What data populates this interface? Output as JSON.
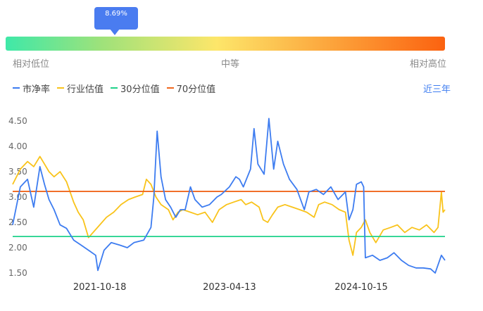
{
  "header": {
    "percentile_label": "8.69%",
    "percentile_value": 8.69,
    "scale_low": "相对低位",
    "scale_mid": "中等",
    "scale_high": "相对高位",
    "period": "近三年"
  },
  "colors": {
    "pb": "#3d7cf0",
    "industry": "#f9c31a",
    "p30": "#1fd28a",
    "p70": "#f0661d"
  },
  "chart_data": {
    "type": "line",
    "xlabel": "",
    "ylabel": "",
    "ylim": [
      1.5,
      4.5
    ],
    "yticks": [
      "4.50",
      "4.00",
      "3.50",
      "3.00",
      "2.50",
      "2.00",
      "1.50"
    ],
    "xticks": [
      "2021-10-18",
      "2023-04-13",
      "2024-10-15"
    ],
    "x_range": [
      "2020-10-19",
      "2025-09-30"
    ],
    "legend_position": "top-left",
    "series": [
      {
        "name": "市净率",
        "color": "#3d7cf0",
        "points": [
          [
            "2020-10-19",
            2.45
          ],
          [
            "2020-11-20",
            3.2
          ],
          [
            "2020-12-20",
            3.35
          ],
          [
            "2021-01-15",
            2.8
          ],
          [
            "2021-02-10",
            3.6
          ],
          [
            "2021-03-01",
            3.25
          ],
          [
            "2021-03-20",
            2.95
          ],
          [
            "2021-04-10",
            2.75
          ],
          [
            "2021-05-05",
            2.45
          ],
          [
            "2021-06-01",
            2.38
          ],
          [
            "2021-07-01",
            2.15
          ],
          [
            "2021-08-01",
            2.05
          ],
          [
            "2021-09-01",
            1.95
          ],
          [
            "2021-10-01",
            1.85
          ],
          [
            "2021-10-10",
            1.55
          ],
          [
            "2021-11-05",
            1.95
          ],
          [
            "2021-12-05",
            2.1
          ],
          [
            "2022-01-10",
            2.05
          ],
          [
            "2022-02-10",
            2.0
          ],
          [
            "2022-03-10",
            2.1
          ],
          [
            "2022-04-20",
            2.15
          ],
          [
            "2022-05-20",
            2.4
          ],
          [
            "2022-06-01",
            3.0
          ],
          [
            "2022-06-15",
            4.3
          ],
          [
            "2022-07-01",
            3.4
          ],
          [
            "2022-07-20",
            2.95
          ],
          [
            "2022-08-10",
            2.8
          ],
          [
            "2022-09-01",
            2.6
          ],
          [
            "2022-09-20",
            2.75
          ],
          [
            "2022-10-10",
            2.75
          ],
          [
            "2022-11-01",
            3.2
          ],
          [
            "2022-11-20",
            2.95
          ],
          [
            "2022-12-20",
            2.8
          ],
          [
            "2023-01-20",
            2.85
          ],
          [
            "2023-02-20",
            3.0
          ],
          [
            "2023-03-10",
            3.05
          ],
          [
            "2023-04-13",
            3.2
          ],
          [
            "2023-05-10",
            3.4
          ],
          [
            "2023-05-25",
            3.35
          ],
          [
            "2023-06-10",
            3.2
          ],
          [
            "2023-07-10",
            3.55
          ],
          [
            "2023-07-25",
            4.35
          ],
          [
            "2023-08-10",
            3.65
          ],
          [
            "2023-09-05",
            3.45
          ],
          [
            "2023-09-25",
            4.55
          ],
          [
            "2023-10-15",
            3.55
          ],
          [
            "2023-11-01",
            4.1
          ],
          [
            "2023-11-25",
            3.65
          ],
          [
            "2023-12-20",
            3.35
          ],
          [
            "2024-01-20",
            3.15
          ],
          [
            "2024-02-20",
            2.75
          ],
          [
            "2024-03-10",
            3.1
          ],
          [
            "2024-04-10",
            3.15
          ],
          [
            "2024-05-10",
            3.05
          ],
          [
            "2024-06-10",
            3.2
          ],
          [
            "2024-07-10",
            2.95
          ],
          [
            "2024-08-10",
            3.1
          ],
          [
            "2024-08-25",
            2.55
          ],
          [
            "2024-09-10",
            2.75
          ],
          [
            "2024-09-25",
            3.25
          ],
          [
            "2024-10-15",
            3.3
          ],
          [
            "2024-10-25",
            3.2
          ],
          [
            "2024-11-01",
            1.8
          ],
          [
            "2024-12-01",
            1.85
          ],
          [
            "2025-01-01",
            1.75
          ],
          [
            "2025-02-01",
            1.8
          ],
          [
            "2025-03-01",
            1.9
          ],
          [
            "2025-04-01",
            1.75
          ],
          [
            "2025-05-01",
            1.65
          ],
          [
            "2025-06-01",
            1.6
          ],
          [
            "2025-07-01",
            1.6
          ],
          [
            "2025-08-01",
            1.58
          ],
          [
            "2025-08-20",
            1.5
          ],
          [
            "2025-09-15",
            1.85
          ],
          [
            "2025-09-30",
            1.75
          ]
        ]
      },
      {
        "name": "行业估值",
        "color": "#f9c31a",
        "points": [
          [
            "2020-10-19",
            3.25
          ],
          [
            "2020-11-20",
            3.55
          ],
          [
            "2020-12-20",
            3.7
          ],
          [
            "2021-01-15",
            3.6
          ],
          [
            "2021-02-10",
            3.8
          ],
          [
            "2021-03-01",
            3.65
          ],
          [
            "2021-03-20",
            3.5
          ],
          [
            "2021-04-10",
            3.4
          ],
          [
            "2021-05-05",
            3.5
          ],
          [
            "2021-06-01",
            3.3
          ],
          [
            "2021-07-01",
            2.9
          ],
          [
            "2021-07-20",
            2.7
          ],
          [
            "2021-08-10",
            2.55
          ],
          [
            "2021-09-01",
            2.2
          ],
          [
            "2021-09-20",
            2.3
          ],
          [
            "2021-10-18",
            2.45
          ],
          [
            "2021-11-15",
            2.6
          ],
          [
            "2021-12-15",
            2.7
          ],
          [
            "2022-01-15",
            2.85
          ],
          [
            "2022-02-15",
            2.95
          ],
          [
            "2022-03-15",
            3.0
          ],
          [
            "2022-04-15",
            3.05
          ],
          [
            "2022-05-01",
            3.35
          ],
          [
            "2022-05-20",
            3.25
          ],
          [
            "2022-06-10",
            3.0
          ],
          [
            "2022-07-01",
            2.85
          ],
          [
            "2022-08-01",
            2.75
          ],
          [
            "2022-08-20",
            2.55
          ],
          [
            "2022-09-10",
            2.7
          ],
          [
            "2022-10-01",
            2.75
          ],
          [
            "2022-11-01",
            2.7
          ],
          [
            "2022-12-01",
            2.65
          ],
          [
            "2023-01-01",
            2.7
          ],
          [
            "2023-02-01",
            2.5
          ],
          [
            "2023-03-01",
            2.75
          ],
          [
            "2023-04-01",
            2.85
          ],
          [
            "2023-05-01",
            2.9
          ],
          [
            "2023-06-01",
            2.95
          ],
          [
            "2023-06-20",
            2.85
          ],
          [
            "2023-07-15",
            2.9
          ],
          [
            "2023-08-15",
            2.8
          ],
          [
            "2023-09-01",
            2.55
          ],
          [
            "2023-09-20",
            2.5
          ],
          [
            "2023-10-10",
            2.65
          ],
          [
            "2023-11-01",
            2.8
          ],
          [
            "2023-12-01",
            2.85
          ],
          [
            "2024-01-01",
            2.8
          ],
          [
            "2024-02-01",
            2.75
          ],
          [
            "2024-03-01",
            2.7
          ],
          [
            "2024-04-01",
            2.6
          ],
          [
            "2024-04-20",
            2.85
          ],
          [
            "2024-05-15",
            2.9
          ],
          [
            "2024-06-15",
            2.85
          ],
          [
            "2024-07-15",
            2.75
          ],
          [
            "2024-08-10",
            2.7
          ],
          [
            "2024-08-25",
            2.15
          ],
          [
            "2024-09-10",
            1.85
          ],
          [
            "2024-09-25",
            2.3
          ],
          [
            "2024-10-15",
            2.4
          ],
          [
            "2024-11-01",
            2.55
          ],
          [
            "2024-11-20",
            2.3
          ],
          [
            "2024-12-15",
            2.1
          ],
          [
            "2025-01-15",
            2.35
          ],
          [
            "2025-02-15",
            2.4
          ],
          [
            "2025-03-15",
            2.45
          ],
          [
            "2025-04-15",
            2.3
          ],
          [
            "2025-05-15",
            2.4
          ],
          [
            "2025-06-15",
            2.35
          ],
          [
            "2025-07-15",
            2.45
          ],
          [
            "2025-08-15",
            2.3
          ],
          [
            "2025-09-01",
            2.4
          ],
          [
            "2025-09-15",
            3.1
          ],
          [
            "2025-09-22",
            2.7
          ],
          [
            "2025-09-30",
            2.75
          ]
        ]
      },
      {
        "name": "30分位值",
        "color": "#1fd28a",
        "constant": 2.22
      },
      {
        "name": "70分位值",
        "color": "#f0661d",
        "constant": 3.11
      }
    ]
  }
}
